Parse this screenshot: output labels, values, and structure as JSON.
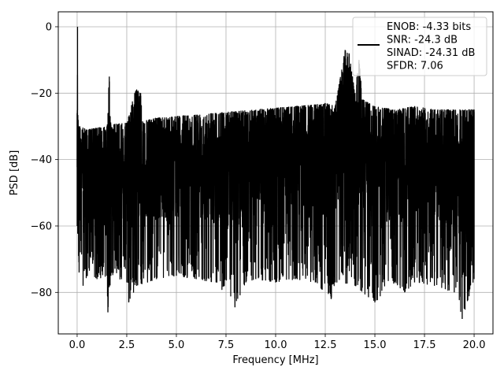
{
  "chart_data": {
    "type": "line",
    "title": "",
    "xlabel": "Frequency [MHz]",
    "ylabel": "PSD [dB]",
    "xlim": [
      -0.95,
      20.95
    ],
    "ylim": [
      -92.5,
      4.5
    ],
    "xticks": [
      0.0,
      2.5,
      5.0,
      7.5,
      10.0,
      12.5,
      15.0,
      17.5,
      20.0
    ],
    "xtick_labels": [
      "0.0",
      "2.5",
      "5.0",
      "7.5",
      "10.0",
      "12.5",
      "15.0",
      "17.5",
      "20.0"
    ],
    "yticks": [
      0,
      -20,
      -40,
      -60,
      -80
    ],
    "ytick_labels": [
      "0",
      "−20",
      "−40",
      "−60",
      "−80"
    ],
    "grid": true,
    "legend_position": "top-right",
    "legend_lines": [
      "ENOB: -4.33 bits",
      "SNR: -24.3 dB",
      "SINAD: -24.31 dB",
      "SFDR: 7.06"
    ],
    "series": [
      {
        "color": "#000000",
        "envelope_top": [
          [
            0.0,
            -26
          ],
          [
            0.02,
            0.0
          ],
          [
            0.05,
            -28
          ],
          [
            0.1,
            -30
          ],
          [
            0.5,
            -31
          ],
          [
            1.0,
            -30.5
          ],
          [
            1.5,
            -30
          ],
          [
            1.62,
            -15
          ],
          [
            1.7,
            -29.5
          ],
          [
            2.5,
            -29
          ],
          [
            2.9,
            -20
          ],
          [
            3.0,
            -19
          ],
          [
            3.2,
            -20
          ],
          [
            3.3,
            -28.5
          ],
          [
            4.0,
            -27.5
          ],
          [
            5.0,
            -27
          ],
          [
            6.0,
            -26.5
          ],
          [
            7.0,
            -26
          ],
          [
            8.0,
            -25.5
          ],
          [
            9.0,
            -25
          ],
          [
            10.0,
            -24.5
          ],
          [
            11.0,
            -24
          ],
          [
            12.0,
            -23.5
          ],
          [
            12.5,
            -23
          ],
          [
            13.0,
            -24
          ],
          [
            13.5,
            -7
          ],
          [
            13.7,
            -8
          ],
          [
            14.0,
            -20
          ],
          [
            14.2,
            -10
          ],
          [
            14.4,
            -22
          ],
          [
            15.0,
            -24
          ],
          [
            16.0,
            -25
          ],
          [
            17.0,
            -24
          ],
          [
            18.0,
            -25
          ],
          [
            19.0,
            -25
          ],
          [
            20.0,
            -25
          ]
        ],
        "envelope_bottom": [
          [
            0.0,
            -60
          ],
          [
            0.1,
            -74
          ],
          [
            0.3,
            -78
          ],
          [
            0.5,
            -75
          ],
          [
            1.0,
            -76
          ],
          [
            1.5,
            -75
          ],
          [
            1.55,
            -86
          ],
          [
            1.7,
            -75
          ],
          [
            2.5,
            -77
          ],
          [
            2.6,
            -83
          ],
          [
            3.0,
            -78
          ],
          [
            4.0,
            -76
          ],
          [
            5.0,
            -75
          ],
          [
            6.0,
            -76
          ],
          [
            7.0,
            -77
          ],
          [
            7.95,
            -84.5
          ],
          [
            8.5,
            -77
          ],
          [
            9.0,
            -76
          ],
          [
            10.0,
            -77
          ],
          [
            11.0,
            -76
          ],
          [
            12.0,
            -77
          ],
          [
            12.8,
            -82
          ],
          [
            13.0,
            -77
          ],
          [
            14.0,
            -78
          ],
          [
            15.0,
            -83
          ],
          [
            16.0,
            -77
          ],
          [
            16.5,
            -80
          ],
          [
            17.0,
            -77
          ],
          [
            18.0,
            -78
          ],
          [
            19.0,
            -80
          ],
          [
            19.4,
            -88
          ],
          [
            20.0,
            -76
          ]
        ]
      }
    ]
  }
}
